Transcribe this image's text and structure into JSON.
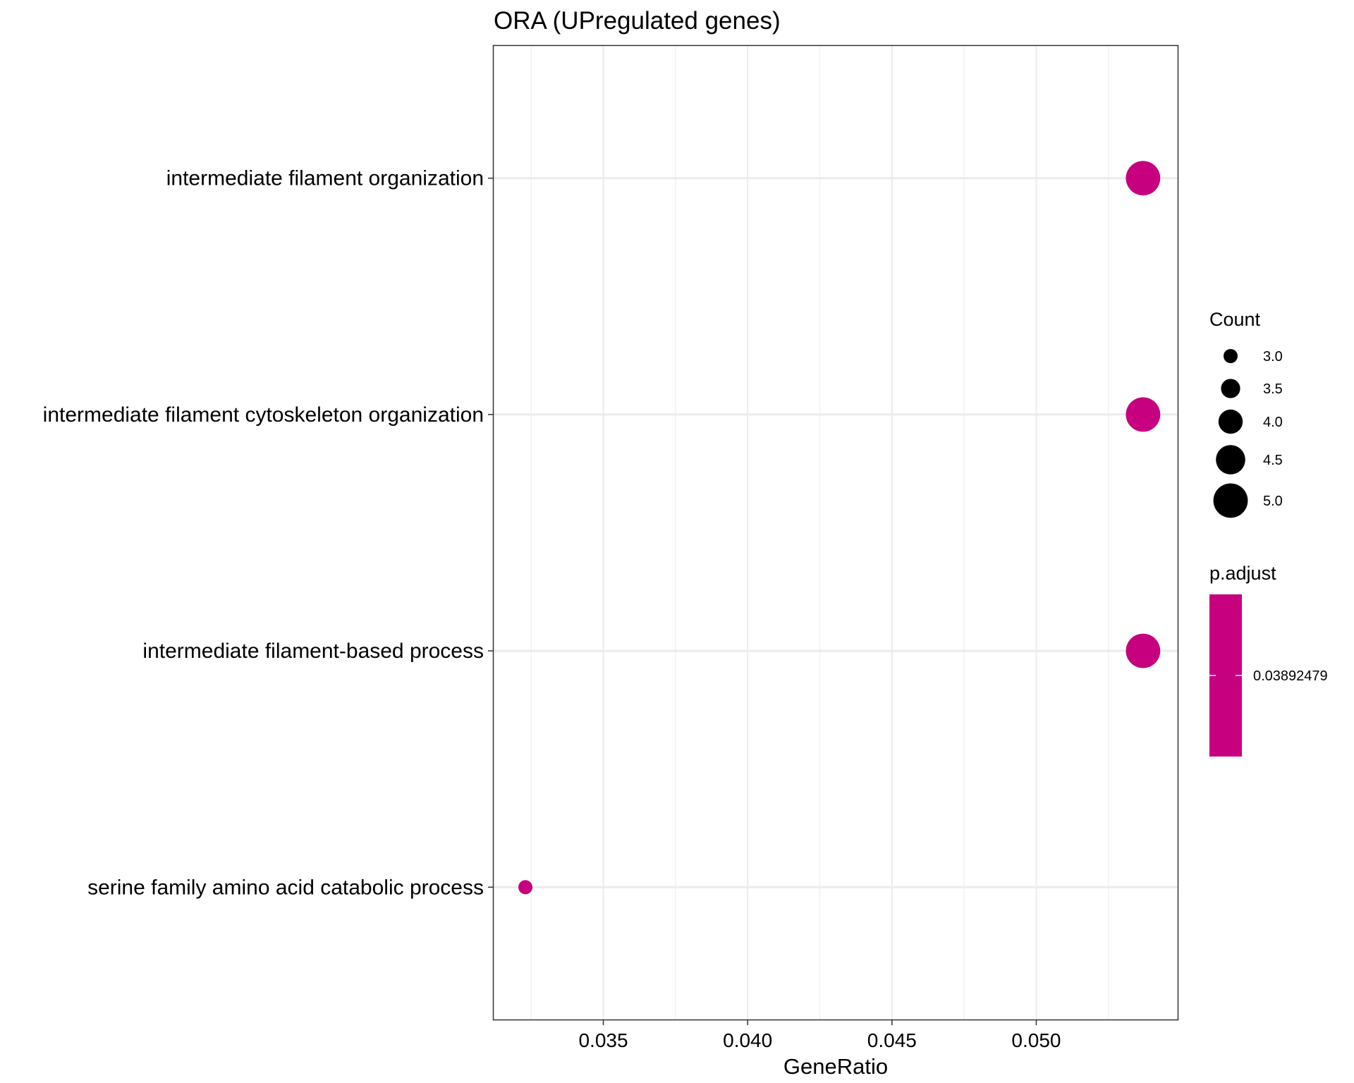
{
  "chart_data": {
    "type": "scatter",
    "title": "ORA (UPregulated genes)",
    "xlabel": "GeneRatio",
    "ylabel": "",
    "xlim": [
      0.0312,
      0.0549
    ],
    "x_ticks": [
      "0.035",
      "0.040",
      "0.045",
      "0.050"
    ],
    "x_tick_values": [
      0.035,
      0.04,
      0.045,
      0.05
    ],
    "categories": [
      "intermediate filament organization",
      "intermediate filament cytoskeleton organization",
      "intermediate filament-based process",
      "serine family amino acid catabolic process"
    ],
    "points": [
      {
        "term": "intermediate filament organization",
        "gene_ratio": 0.0537,
        "count": 5,
        "p_adjust": 0.03892479
      },
      {
        "term": "intermediate filament cytoskeleton organization",
        "gene_ratio": 0.0537,
        "count": 5,
        "p_adjust": 0.03892479
      },
      {
        "term": "intermediate filament-based process",
        "gene_ratio": 0.0537,
        "count": 5,
        "p_adjust": 0.03892479
      },
      {
        "term": "serine family amino acid catabolic process",
        "gene_ratio": 0.0323,
        "count": 3,
        "p_adjust": 0.03892479
      }
    ],
    "grid": true,
    "legend_position": "right",
    "size_legend": {
      "title": "Count",
      "labels": [
        "3.0",
        "3.5",
        "4.0",
        "4.5",
        "5.0"
      ],
      "values": [
        3.0,
        3.5,
        4.0,
        4.5,
        5.0
      ]
    },
    "color_legend": {
      "title": "p.adjust",
      "label": "0.03892479"
    },
    "point_color": "#C6007F",
    "legend_key_color": "#000000",
    "grid_color": "#EBEBEB"
  }
}
